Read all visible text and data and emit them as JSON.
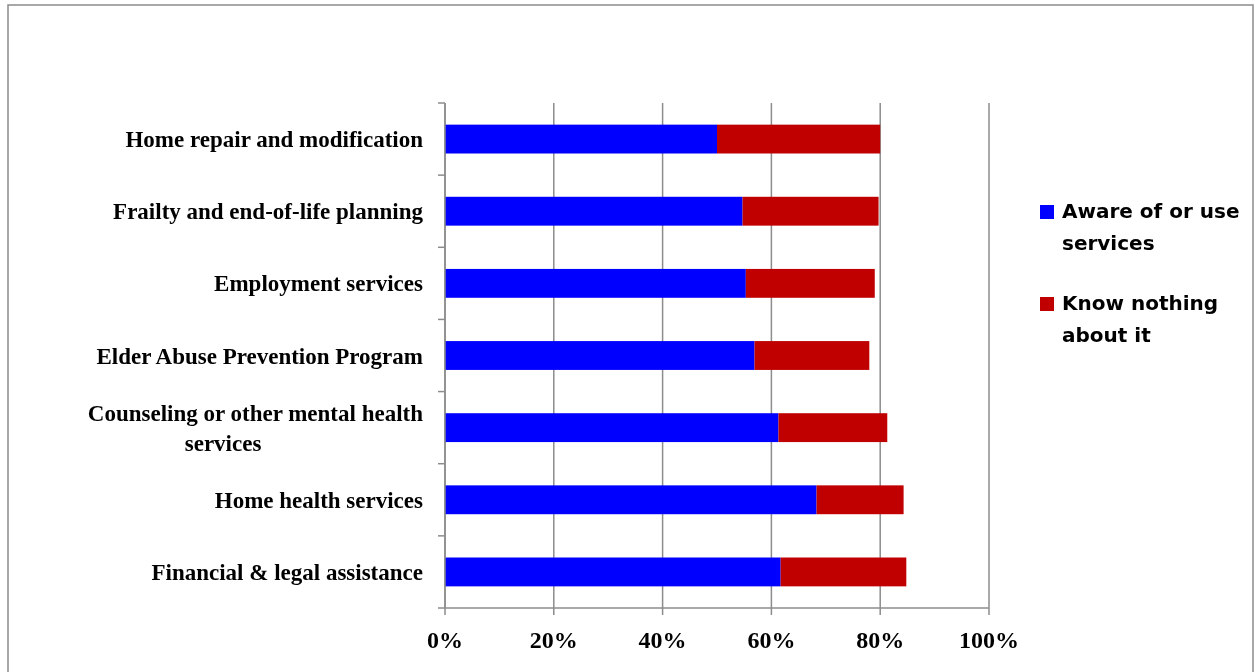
{
  "chart_data": {
    "type": "bar",
    "orientation": "horizontal",
    "stacked": true,
    "categories": [
      "Home repair and modification",
      "Frailty and end-of-life planning",
      "Employment services",
      "Elder Abuse Prevention Program",
      "Counseling or other mental health services",
      "Home health services",
      "Financial & legal assistance"
    ],
    "series": [
      {
        "name": "Aware of or use services",
        "color": "#0000ff",
        "values": [
          50,
          54.7,
          55.3,
          56.9,
          61.3,
          68.3,
          61.7
        ]
      },
      {
        "name": "Know nothing about it",
        "color": "#c00000",
        "values": [
          30,
          25,
          23.7,
          21.1,
          20,
          16,
          23.1
        ]
      }
    ],
    "xlim": [
      0,
      100
    ],
    "xticks": [
      {
        "value": 0,
        "label": "0%"
      },
      {
        "value": 20,
        "label": "20%"
      },
      {
        "value": 40,
        "label": "40%"
      },
      {
        "value": 60,
        "label": "60%"
      },
      {
        "value": 80,
        "label": "80%"
      },
      {
        "value": 100,
        "label": "100%"
      }
    ],
    "grid": "x",
    "legend": "right"
  }
}
